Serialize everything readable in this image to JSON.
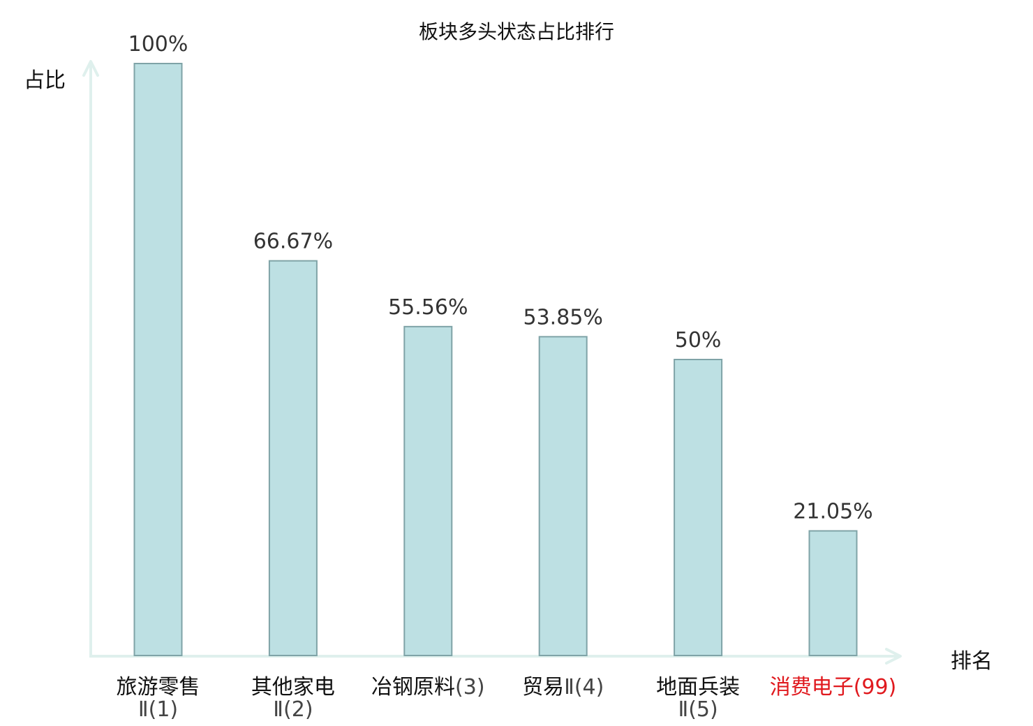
{
  "chart_data": {
    "type": "bar",
    "title": "板块多头状态占比排行",
    "ylabel": "占比",
    "xlabel": "排名",
    "ylim": [
      0,
      100
    ],
    "categories": [
      {
        "name": "旅游零售",
        "suffix": "Ⅱ(1)",
        "rank_line_break": true,
        "highlight": false
      },
      {
        "name": "其他家电",
        "suffix": "Ⅱ(2)",
        "rank_line_break": true,
        "highlight": false
      },
      {
        "name": "冶钢原料",
        "suffix": "(3)",
        "rank_line_break": false,
        "highlight": false
      },
      {
        "name": "贸易",
        "suffix": "Ⅱ(4)",
        "rank_line_break": false,
        "highlight": false
      },
      {
        "name": "地面兵装",
        "suffix": "Ⅱ(5)",
        "rank_line_break": true,
        "highlight": false
      },
      {
        "name": "消费电子",
        "suffix": "(99)",
        "rank_line_break": false,
        "highlight": true
      }
    ],
    "values": [
      100,
      66.67,
      55.56,
      53.85,
      50,
      21.05
    ],
    "value_labels": [
      "100%",
      "66.67%",
      "55.56%",
      "53.85%",
      "50%",
      "21.05%"
    ],
    "grid": false,
    "colors": {
      "bar_fill": "#bde0e3",
      "bar_stroke": "#7fa3a7",
      "axis": "#dff0ed",
      "highlight_text": "#e0191e",
      "label_text": "#111111",
      "value_text": "#333333",
      "suffix_text": "#444444"
    }
  }
}
